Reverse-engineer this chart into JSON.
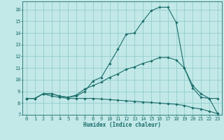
{
  "xlabel": "Humidex (Indice chaleur)",
  "bg_color": "#c2e8e8",
  "line_color": "#1a6e6a",
  "grid_color": "#8cc8c8",
  "xlim": [
    -0.5,
    23.5
  ],
  "ylim": [
    7,
    16.7
  ],
  "yticks": [
    7,
    8,
    9,
    10,
    11,
    12,
    13,
    14,
    15,
    16
  ],
  "xticks": [
    0,
    1,
    2,
    3,
    4,
    5,
    6,
    7,
    8,
    9,
    10,
    11,
    12,
    13,
    14,
    15,
    16,
    17,
    18,
    19,
    20,
    21,
    22,
    23
  ],
  "line1_x": [
    0,
    1,
    2,
    3,
    4,
    5,
    6,
    7,
    8,
    9,
    10,
    11,
    12,
    13,
    14,
    15,
    16,
    17,
    18,
    19,
    20,
    21,
    22,
    23
  ],
  "line1_y": [
    8.4,
    8.4,
    8.8,
    8.8,
    8.6,
    8.5,
    8.6,
    9.0,
    9.9,
    10.2,
    11.4,
    12.6,
    13.9,
    14.0,
    15.0,
    15.9,
    16.2,
    16.2,
    14.9,
    11.0,
    9.3,
    8.5,
    8.4,
    7.1
  ],
  "line2_x": [
    0,
    1,
    2,
    3,
    4,
    5,
    6,
    7,
    8,
    9,
    10,
    11,
    12,
    13,
    14,
    15,
    16,
    17,
    18,
    19,
    20,
    21,
    22,
    23
  ],
  "line2_y": [
    8.4,
    8.4,
    8.8,
    8.8,
    8.6,
    8.5,
    8.7,
    9.2,
    9.5,
    9.8,
    10.2,
    10.5,
    10.9,
    11.1,
    11.4,
    11.6,
    11.9,
    11.9,
    11.7,
    11.0,
    9.5,
    8.8,
    8.4,
    8.4
  ],
  "line3_x": [
    0,
    1,
    2,
    3,
    4,
    5,
    6,
    7,
    8,
    9,
    10,
    11,
    12,
    13,
    14,
    15,
    16,
    17,
    18,
    19,
    20,
    21,
    22,
    23
  ],
  "line3_y": [
    8.4,
    8.4,
    8.8,
    8.6,
    8.5,
    8.4,
    8.4,
    8.4,
    8.4,
    8.35,
    8.3,
    8.25,
    8.2,
    8.15,
    8.1,
    8.05,
    8.0,
    7.95,
    7.9,
    7.8,
    7.6,
    7.5,
    7.3,
    7.1
  ],
  "marker": "D",
  "markersize": 1.8,
  "linewidth": 0.8,
  "xlabel_fontsize": 5.5,
  "tick_fontsize": 5.0
}
